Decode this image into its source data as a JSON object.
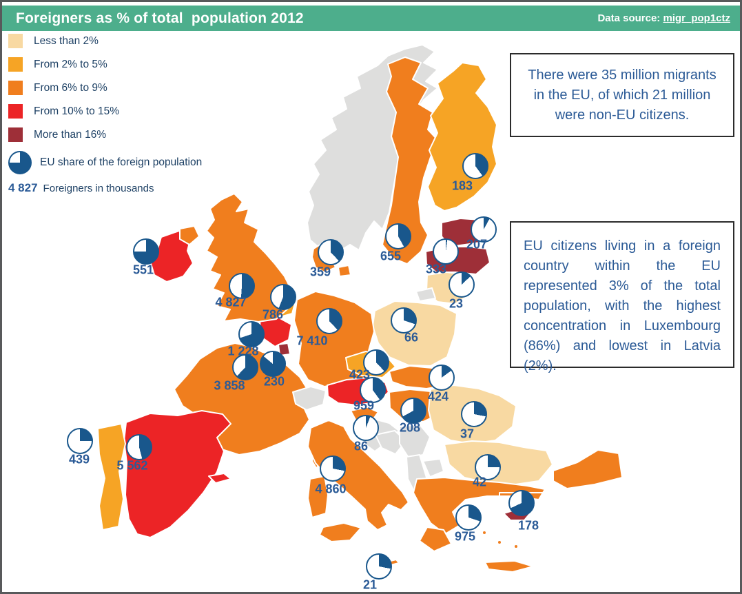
{
  "header": {
    "title": "Foreigners as % of total  population 2012",
    "data_source_label": "Data source:",
    "data_source_link": "migr_pop1ctz"
  },
  "legend": {
    "classes": [
      {
        "label": "Less than 2%",
        "color": "#F8D9A2"
      },
      {
        "label": "From 2% to 5%",
        "color": "#F6A425"
      },
      {
        "label": "From 6% to 9%",
        "color": "#F07E1E"
      },
      {
        "label": "From 10% to 15%",
        "color": "#EC2426"
      },
      {
        "label": "More than 16%",
        "color": "#9E2F38"
      }
    ],
    "pie_legend_label": "EU share of the foreign population",
    "value_legend_example": "4 827",
    "value_legend_label": "Foreigners in thousands"
  },
  "callouts": [
    {
      "text": "There were 35 million migrants in the EU, of which 21 million were non-EU citizens."
    },
    {
      "text": "EU citizens living in a foreign country within the EU represented 3% of the total population, with the highest concentration in Luxembourg (86%) and lowest in Latvia (2%)."
    }
  ],
  "colors": {
    "header_green": "#4DAE8C",
    "frame_gray": "#58595B",
    "pie_blue": "#19578C",
    "pie_white": "#FFFFFF",
    "legend_text_navy": "#1D4064",
    "value_text_blue": "#2B5B97",
    "callout_text_blue": "#2B5A96",
    "no_data_gray": "#DEDEDD"
  },
  "chart_data": {
    "type": "choropleth-map-with-pies",
    "title": "Foreigners as % of total population 2012",
    "unit": "thousands of foreigners",
    "pie_meaning": "blue slice = EU share of the foreign population",
    "countries": [
      {
        "id": "ireland",
        "name": "Ireland",
        "value_label": "551",
        "value": 551,
        "eu_share_pct": 75,
        "category": "From 10% to 15%"
      },
      {
        "id": "uk",
        "name": "United Kingdom",
        "value_label": "4 827",
        "value": 4827,
        "eu_share_pct": 51,
        "category": "From 6% to 9%"
      },
      {
        "id": "netherlands",
        "name": "Netherlands",
        "value_label": "786",
        "value": 786,
        "eu_share_pct": 56,
        "category": "From 2% to 5%"
      },
      {
        "id": "belgium",
        "name": "Belgium",
        "value_label": "1 228",
        "value": 1228,
        "eu_share_pct": 70,
        "category": "From 10% to 15%"
      },
      {
        "id": "luxembourg",
        "name": "Luxembourg",
        "value_label": "230",
        "value": 230,
        "eu_share_pct": 86,
        "category": "More than 16%"
      },
      {
        "id": "france",
        "name": "France",
        "value_label": "3 858",
        "value": 3858,
        "eu_share_pct": 62,
        "category": "From 6% to 9%"
      },
      {
        "id": "germany",
        "name": "Germany",
        "value_label": "7 410",
        "value": 7410,
        "eu_share_pct": 38,
        "category": "From 6% to 9%"
      },
      {
        "id": "denmark",
        "name": "Denmark",
        "value_label": "359",
        "value": 359,
        "eu_share_pct": 38,
        "category": "From 6% to 9%"
      },
      {
        "id": "sweden",
        "name": "Sweden",
        "value_label": "655",
        "value": 655,
        "eu_share_pct": 42,
        "category": "From 6% to 9%"
      },
      {
        "id": "finland",
        "name": "Finland",
        "value_label": "183",
        "value": 183,
        "eu_share_pct": 40,
        "category": "From 2% to 5%"
      },
      {
        "id": "estonia",
        "name": "Estonia",
        "value_label": "207",
        "value": 207,
        "eu_share_pct": 8,
        "category": "More than 16%"
      },
      {
        "id": "latvia",
        "name": "Latvia",
        "value_label": "333",
        "value": 333,
        "eu_share_pct": 2,
        "category": "More than 16%"
      },
      {
        "id": "lithuania",
        "name": "Lithuania",
        "value_label": "23",
        "value": 23,
        "eu_share_pct": 13,
        "category": "Less than 2%"
      },
      {
        "id": "poland",
        "name": "Poland",
        "value_label": "66",
        "value": 66,
        "eu_share_pct": 30,
        "category": "Less than 2%"
      },
      {
        "id": "czech",
        "name": "Czech Republic",
        "value_label": "423",
        "value": 423,
        "eu_share_pct": 38,
        "category": "From 2% to 5%"
      },
      {
        "id": "austria",
        "name": "Austria",
        "value_label": "959",
        "value": 959,
        "eu_share_pct": 40,
        "category": "From 10% to 15%"
      },
      {
        "id": "slovakia",
        "name": "Slovakia",
        "value_label": "424",
        "value": 424,
        "eu_share_pct": 15,
        "category": "From 6% to 9%"
      },
      {
        "id": "hungary",
        "name": "Hungary",
        "value_label": "208",
        "value": 208,
        "eu_share_pct": 67,
        "category": "From 6% to 9%"
      },
      {
        "id": "slovenia",
        "name": "Slovenia",
        "value_label": "86",
        "value": 86,
        "eu_share_pct": 6,
        "category": "From 6% to 9%"
      },
      {
        "id": "romania",
        "name": "Romania",
        "value_label": "37",
        "value": 37,
        "eu_share_pct": 28,
        "category": "Less than 2%"
      },
      {
        "id": "bulgaria",
        "name": "Bulgaria",
        "value_label": "42",
        "value": 42,
        "eu_share_pct": 25,
        "category": "Less than 2%"
      },
      {
        "id": "greece",
        "name": "Greece",
        "value_label": "975",
        "value": 975,
        "eu_share_pct": 30,
        "category": "From 6% to 9%"
      },
      {
        "id": "italy",
        "name": "Italy",
        "value_label": "4 860",
        "value": 4860,
        "eu_share_pct": 28,
        "category": "From 6% to 9%"
      },
      {
        "id": "malta",
        "name": "Malta",
        "value_label": "21",
        "value": 21,
        "eu_share_pct": 28,
        "category": "From 6% to 9%"
      },
      {
        "id": "cyprus",
        "name": "Cyprus",
        "value_label": "178",
        "value": 178,
        "eu_share_pct": 68,
        "category": "More than 16%"
      },
      {
        "id": "spain",
        "name": "Spain",
        "value_label": "5 562",
        "value": 5562,
        "eu_share_pct": 46,
        "category": "From 10% to 15%"
      },
      {
        "id": "portugal",
        "name": "Portugal",
        "value_label": "439",
        "value": 439,
        "eu_share_pct": 25,
        "category": "From 2% to 5%"
      }
    ]
  }
}
